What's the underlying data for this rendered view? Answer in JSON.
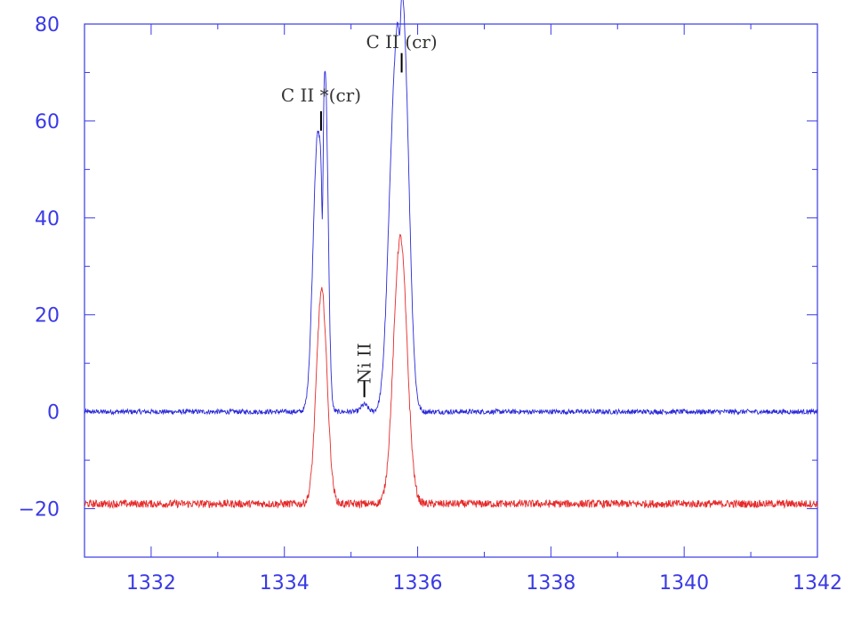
{
  "chart_data": {
    "type": "line",
    "title": "",
    "xlabel": "",
    "ylabel": "",
    "xlim": [
      1331,
      1342
    ],
    "ylim": [
      -30,
      80
    ],
    "grid": false,
    "x_ticks": [
      1332,
      1334,
      1336,
      1338,
      1340,
      1342
    ],
    "y_ticks": [
      -20,
      0,
      20,
      40,
      60,
      80
    ],
    "x_tick_labels": [
      "1332",
      "1334",
      "1336",
      "1338",
      "1340",
      "1342"
    ],
    "y_tick_labels": [
      "−20",
      "0",
      "20",
      "40",
      "60",
      "80"
    ],
    "series": [
      {
        "color": "#2a2ad8",
        "baseline": 0,
        "noise": 0.5,
        "peaks": [
          {
            "x": 1334.5,
            "height": 57,
            "width": 0.07
          },
          {
            "x": 1334.62,
            "height": 56,
            "width": 0.04
          },
          {
            "x": 1335.2,
            "height": 1.5,
            "width": 0.05
          },
          {
            "x": 1335.65,
            "height": 60,
            "width": 0.09
          },
          {
            "x": 1335.8,
            "height": 66,
            "width": 0.08
          }
        ],
        "dips": [
          {
            "x": 1334.57,
            "depth": 20,
            "width": 0.012
          },
          {
            "x": 1335.73,
            "depth": 8,
            "width": 0.015
          }
        ]
      },
      {
        "color": "#e62a2a",
        "baseline": -19,
        "noise": 0.8,
        "peaks": [
          {
            "x": 1334.56,
            "height": 44,
            "width": 0.08
          },
          {
            "x": 1335.74,
            "height": 55,
            "width": 0.1
          }
        ],
        "dips": []
      }
    ],
    "annotations": [
      {
        "text": "C II *(cr)",
        "x": 1334.55,
        "y_text": 64,
        "tick_y": [
          58,
          62
        ],
        "rotate": 0
      },
      {
        "text": "C II (cr)",
        "x": 1335.76,
        "y_text": 75,
        "tick_y": [
          70,
          74
        ],
        "rotate": 0
      },
      {
        "text": "Ni II",
        "x": 1335.2,
        "y_text": 10,
        "tick_y": [
          3,
          6.5
        ],
        "rotate": -90
      }
    ]
  }
}
